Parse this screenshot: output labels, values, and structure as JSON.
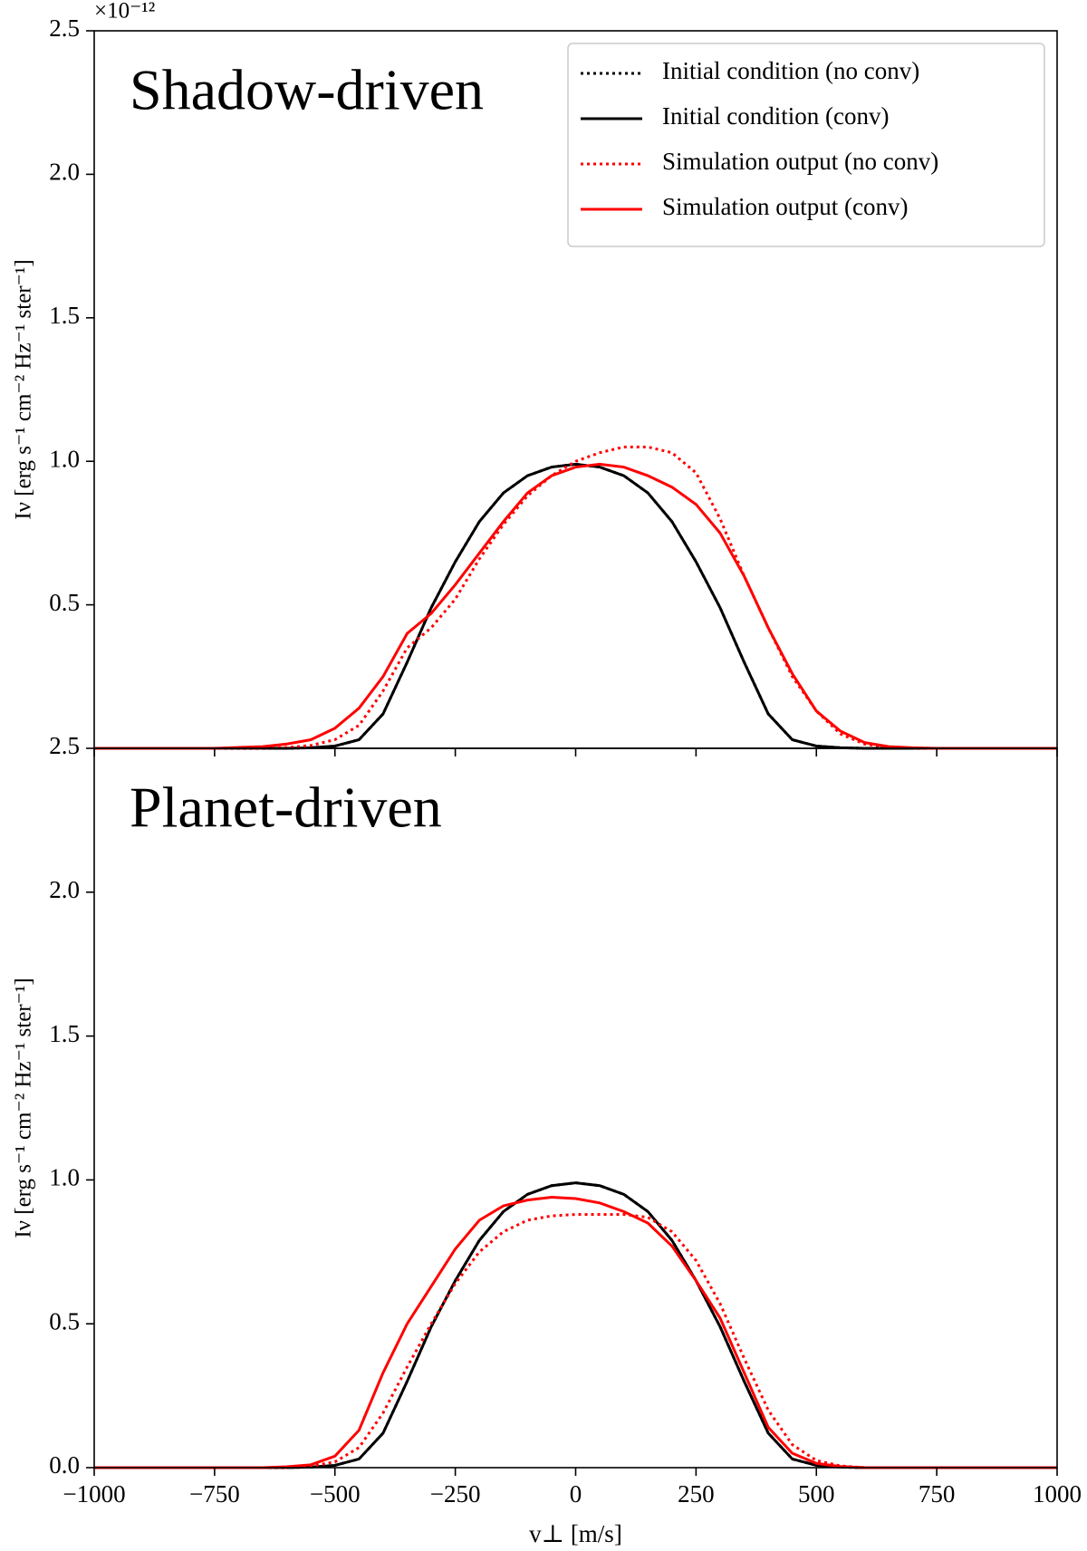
{
  "chart_data": [
    {
      "type": "line",
      "annotation": "Shadow-driven",
      "y_offset": "×10⁻¹²",
      "ylabel": "Iν [erg s⁻¹ cm⁻² Hz⁻¹ ster⁻¹]",
      "legend": "upper right",
      "x": [
        -1000,
        -950,
        -900,
        -850,
        -800,
        -750,
        -700,
        -650,
        -600,
        -550,
        -500,
        -450,
        -400,
        -350,
        -300,
        -250,
        -200,
        -150,
        -100,
        -50,
        0,
        50,
        100,
        150,
        200,
        250,
        300,
        350,
        400,
        450,
        500,
        550,
        600,
        650,
        700,
        750,
        800,
        850,
        900,
        950,
        1000
      ],
      "series": [
        {
          "name": "Initial condition (no conv)",
          "color": "#000000",
          "linestyle": "dotted",
          "values": [
            0,
            0,
            0,
            0,
            0,
            0,
            0,
            0,
            0,
            0.002,
            0.008,
            0.03,
            0.12,
            0.3,
            0.49,
            0.65,
            0.79,
            0.89,
            0.95,
            0.98,
            0.99,
            0.98,
            0.95,
            0.89,
            0.79,
            0.65,
            0.49,
            0.3,
            0.12,
            0.03,
            0.008,
            0.002,
            0,
            0,
            0,
            0,
            0,
            0,
            0,
            0,
            0
          ]
        },
        {
          "name": "Initial condition (conv)",
          "color": "#000000",
          "linestyle": "solid",
          "values": [
            0,
            0,
            0,
            0,
            0,
            0,
            0,
            0,
            0,
            0.002,
            0.008,
            0.03,
            0.12,
            0.3,
            0.49,
            0.65,
            0.79,
            0.89,
            0.95,
            0.98,
            0.99,
            0.98,
            0.95,
            0.89,
            0.79,
            0.65,
            0.49,
            0.3,
            0.12,
            0.03,
            0.008,
            0.002,
            0,
            0,
            0,
            0,
            0,
            0,
            0,
            0,
            0
          ]
        },
        {
          "name": "Simulation output (no conv)",
          "color": "#ff0000",
          "linestyle": "dotted",
          "values": [
            0,
            0,
            0,
            0,
            0,
            0,
            0,
            0,
            0.003,
            0.01,
            0.03,
            0.08,
            0.2,
            0.35,
            0.42,
            0.52,
            0.66,
            0.78,
            0.88,
            0.95,
            1.0,
            1.03,
            1.05,
            1.05,
            1.03,
            0.96,
            0.8,
            0.6,
            0.42,
            0.25,
            0.13,
            0.05,
            0.015,
            0.004,
            0.001,
            0,
            0,
            0,
            0,
            0,
            0
          ]
        },
        {
          "name": "Simulation output (conv)",
          "color": "#ff0000",
          "linestyle": "solid",
          "values": [
            0,
            0,
            0,
            0,
            0,
            0,
            0.003,
            0.006,
            0.015,
            0.03,
            0.07,
            0.14,
            0.25,
            0.4,
            0.47,
            0.57,
            0.68,
            0.79,
            0.89,
            0.95,
            0.98,
            0.99,
            0.98,
            0.95,
            0.91,
            0.85,
            0.75,
            0.6,
            0.42,
            0.26,
            0.13,
            0.06,
            0.02,
            0.006,
            0.002,
            0,
            0,
            0,
            0,
            0,
            0
          ]
        }
      ],
      "xlim": [
        -1000,
        1000
      ],
      "xticks": [
        -1000,
        -750,
        -500,
        -250,
        0,
        250,
        500,
        750,
        1000
      ],
      "ylim": [
        0,
        2.5
      ],
      "yticks": [
        0.5,
        {
          "value": 1,
          "label": "1.0"
        },
        1.5,
        {
          "value": 2,
          "label": "2.0"
        },
        2.5
      ]
    },
    {
      "type": "line",
      "annotation": "Planet-driven",
      "ylabel": "Iν [erg s⁻¹ cm⁻² Hz⁻¹ ster⁻¹]",
      "xlabel": "v⊥ [m/s]",
      "x": [
        -1000,
        -950,
        -900,
        -850,
        -800,
        -750,
        -700,
        -650,
        -600,
        -550,
        -500,
        -450,
        -400,
        -350,
        -300,
        -250,
        -200,
        -150,
        -100,
        -50,
        0,
        50,
        100,
        150,
        200,
        250,
        300,
        350,
        400,
        450,
        500,
        550,
        600,
        650,
        700,
        750,
        800,
        850,
        900,
        950,
        1000
      ],
      "series": [
        {
          "name": "Initial condition (no conv)",
          "color": "#000000",
          "linestyle": "dotted",
          "values": [
            0,
            0,
            0,
            0,
            0,
            0,
            0,
            0,
            0,
            0.002,
            0.008,
            0.03,
            0.12,
            0.3,
            0.49,
            0.65,
            0.79,
            0.89,
            0.95,
            0.98,
            0.99,
            0.98,
            0.95,
            0.89,
            0.79,
            0.65,
            0.49,
            0.3,
            0.12,
            0.03,
            0.008,
            0.002,
            0,
            0,
            0,
            0,
            0,
            0,
            0,
            0,
            0
          ]
        },
        {
          "name": "Initial condition (conv)",
          "color": "#000000",
          "linestyle": "solid",
          "values": [
            0,
            0,
            0,
            0,
            0,
            0,
            0,
            0,
            0,
            0.002,
            0.008,
            0.03,
            0.12,
            0.3,
            0.49,
            0.65,
            0.79,
            0.89,
            0.95,
            0.98,
            0.99,
            0.98,
            0.95,
            0.89,
            0.79,
            0.65,
            0.49,
            0.3,
            0.12,
            0.03,
            0.008,
            0.002,
            0,
            0,
            0,
            0,
            0,
            0,
            0,
            0,
            0
          ]
        },
        {
          "name": "Simulation output (no conv)",
          "color": "#ff0000",
          "linestyle": "dotted",
          "values": [
            0,
            0,
            0,
            0,
            0,
            0,
            0,
            0,
            0,
            0.005,
            0.02,
            0.07,
            0.19,
            0.35,
            0.5,
            0.64,
            0.75,
            0.82,
            0.86,
            0.875,
            0.88,
            0.88,
            0.88,
            0.87,
            0.82,
            0.72,
            0.57,
            0.38,
            0.2,
            0.08,
            0.025,
            0.006,
            0,
            0,
            0,
            0,
            0,
            0,
            0,
            0,
            0
          ]
        },
        {
          "name": "Simulation output (conv)",
          "color": "#ff0000",
          "linestyle": "solid",
          "values": [
            0,
            0,
            0,
            0,
            0,
            0,
            0,
            0,
            0.003,
            0.01,
            0.04,
            0.13,
            0.33,
            0.5,
            0.63,
            0.76,
            0.86,
            0.91,
            0.93,
            0.94,
            0.935,
            0.92,
            0.89,
            0.85,
            0.77,
            0.65,
            0.52,
            0.33,
            0.14,
            0.05,
            0.015,
            0.004,
            0,
            0,
            0,
            0,
            0,
            0,
            0,
            0,
            0
          ]
        }
      ],
      "xlim": [
        -1000,
        1000
      ],
      "xticks": [
        {
          "value": -1000,
          "label": "−1000"
        },
        {
          "value": -750,
          "label": "−750"
        },
        {
          "value": -500,
          "label": "−500"
        },
        {
          "value": -250,
          "label": "−250"
        },
        0,
        250,
        500,
        750,
        1000
      ],
      "ylim": [
        0,
        2.5
      ],
      "yticks": [
        {
          "value": 0,
          "label": "0.0"
        },
        0.5,
        {
          "value": 1,
          "label": "1.0"
        },
        1.5,
        {
          "value": 2,
          "label": "2.0"
        },
        2.5
      ]
    }
  ]
}
